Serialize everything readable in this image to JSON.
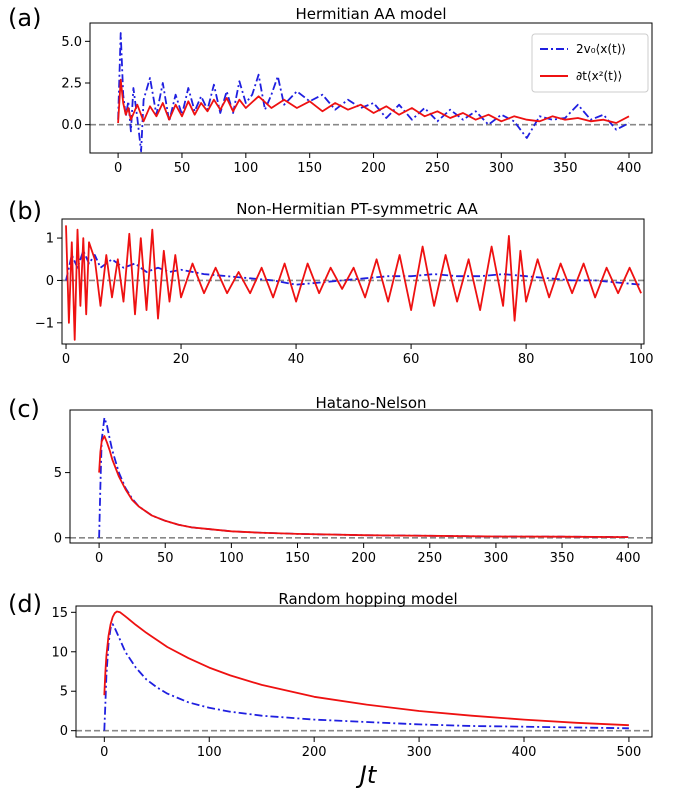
{
  "xlabel": "Jt",
  "legend": {
    "blue_label": "2v₀⟨x(t)⟩",
    "red_label": "∂t⟨x²(t)⟩"
  },
  "colors": {
    "blue": "#1f1fe0",
    "red": "#ee1111",
    "zero_line": "#888888"
  },
  "chart_data": [
    {
      "type": "line",
      "letter": "(a)",
      "title": "Hermitian AA model",
      "xlim": [
        -22,
        418
      ],
      "ylim": [
        -1.7,
        6.1
      ],
      "xticks": [
        0,
        50,
        100,
        150,
        200,
        250,
        300,
        350,
        400
      ],
      "yticks": [
        0.0,
        2.5,
        5.0
      ],
      "ytick_labels": [
        "0.0",
        "2.5",
        "5.0"
      ],
      "legend_location": "upper-right",
      "hline": 0,
      "series": [
        {
          "key": "blue",
          "style": "dashdot",
          "x": [
            0,
            2,
            4,
            6,
            8,
            10,
            12,
            15,
            18,
            20,
            25,
            30,
            35,
            40,
            45,
            50,
            55,
            60,
            65,
            70,
            75,
            80,
            85,
            90,
            95,
            100,
            105,
            110,
            115,
            120,
            125,
            130,
            140,
            150,
            160,
            170,
            180,
            190,
            200,
            210,
            220,
            230,
            240,
            250,
            260,
            270,
            280,
            290,
            300,
            310,
            320,
            330,
            340,
            350,
            360,
            370,
            380,
            390,
            400
          ],
          "y": [
            0.3,
            5.5,
            1.8,
            0.5,
            1.4,
            -0.4,
            2.2,
            0.4,
            -1.6,
            1.5,
            2.8,
            0.6,
            2.5,
            0.2,
            1.8,
            0.6,
            2.2,
            0.8,
            1.7,
            0.9,
            2.4,
            0.7,
            2.0,
            0.7,
            2.6,
            1.3,
            1.8,
            3.0,
            0.9,
            1.8,
            2.9,
            1.2,
            2.0,
            1.4,
            1.8,
            0.9,
            1.5,
            1.0,
            1.3,
            0.4,
            1.2,
            0.3,
            1.0,
            0.2,
            0.9,
            0.3,
            0.8,
            0.0,
            0.6,
            0.2,
            -0.8,
            0.5,
            0.3,
            0.4,
            1.2,
            0.3,
            0.6,
            -0.3,
            0.1
          ]
        },
        {
          "key": "red",
          "style": "solid",
          "x": [
            0,
            2,
            4,
            6,
            8,
            10,
            15,
            20,
            25,
            30,
            35,
            40,
            45,
            50,
            55,
            60,
            65,
            70,
            75,
            80,
            85,
            90,
            95,
            100,
            110,
            120,
            130,
            140,
            150,
            160,
            170,
            180,
            190,
            200,
            210,
            220,
            230,
            240,
            250,
            260,
            270,
            280,
            290,
            300,
            310,
            320,
            330,
            340,
            350,
            360,
            370,
            380,
            390,
            400
          ],
          "y": [
            0.1,
            2.7,
            1.3,
            0.6,
            1.0,
            0.3,
            1.2,
            0.2,
            1.1,
            0.5,
            1.3,
            0.3,
            1.2,
            0.5,
            1.4,
            0.6,
            1.3,
            0.8,
            1.5,
            0.9,
            1.6,
            0.8,
            1.5,
            1.0,
            1.7,
            1.0,
            1.5,
            1.0,
            1.4,
            0.8,
            1.3,
            0.9,
            1.2,
            0.7,
            1.1,
            0.6,
            1.0,
            0.5,
            0.8,
            0.4,
            0.7,
            0.3,
            0.6,
            0.2,
            0.5,
            0.3,
            0.2,
            0.5,
            0.3,
            0.4,
            0.2,
            0.3,
            0.1,
            0.5
          ]
        }
      ]
    },
    {
      "type": "line",
      "letter": "(b)",
      "title": "Non-Hermitian PT-symmetric AA",
      "xlim": [
        -0.7,
        100.5
      ],
      "ylim": [
        -1.5,
        1.45
      ],
      "xticks": [
        0,
        20,
        40,
        60,
        80,
        100
      ],
      "yticks": [
        -1,
        0,
        1
      ],
      "ytick_labels": [
        "−1",
        "0",
        "1"
      ],
      "hline": 0,
      "series": [
        {
          "key": "blue",
          "style": "dashdot",
          "x": [
            0,
            1,
            2,
            3,
            4,
            5,
            6,
            8,
            10,
            12,
            14,
            16,
            18,
            20,
            24,
            28,
            32,
            36,
            40,
            44,
            48,
            52,
            56,
            60,
            64,
            68,
            72,
            76,
            80,
            84,
            88,
            92,
            96,
            100
          ],
          "y": [
            0.0,
            0.6,
            0.3,
            0.7,
            0.4,
            0.6,
            0.3,
            0.5,
            0.3,
            0.4,
            0.2,
            0.3,
            0.2,
            0.25,
            0.15,
            0.1,
            0.05,
            0.0,
            -0.1,
            -0.05,
            0.0,
            0.05,
            0.1,
            0.1,
            0.15,
            0.1,
            0.1,
            0.15,
            0.1,
            0.05,
            0.0,
            0.0,
            -0.05,
            -0.1
          ]
        },
        {
          "key": "red",
          "style": "solid",
          "x": [
            0,
            0.5,
            1,
            1.5,
            2,
            2.5,
            3,
            3.5,
            4,
            5,
            6,
            7,
            8,
            9,
            10,
            11,
            12,
            13,
            14,
            15,
            16,
            17,
            18,
            19,
            20,
            22,
            24,
            26,
            28,
            30,
            32,
            34,
            36,
            38,
            40,
            42,
            44,
            46,
            48,
            50,
            52,
            54,
            56,
            58,
            60,
            62,
            64,
            66,
            68,
            70,
            72,
            74,
            76,
            77,
            78,
            79,
            80,
            82,
            84,
            86,
            88,
            90,
            92,
            94,
            96,
            98,
            100
          ],
          "y": [
            1.3,
            -1.0,
            0.9,
            -1.4,
            1.2,
            -0.6,
            1.0,
            -0.8,
            0.9,
            0.5,
            -0.6,
            0.6,
            -0.4,
            0.5,
            -0.5,
            1.1,
            -0.8,
            1.0,
            -0.7,
            1.2,
            -0.9,
            0.7,
            -0.5,
            0.6,
            -0.4,
            0.4,
            -0.3,
            0.3,
            -0.3,
            0.2,
            -0.3,
            0.3,
            -0.4,
            0.4,
            -0.5,
            0.4,
            -0.3,
            0.3,
            -0.2,
            0.3,
            -0.4,
            0.5,
            -0.5,
            0.6,
            -0.7,
            0.8,
            -0.6,
            0.6,
            -0.5,
            0.5,
            -0.7,
            0.8,
            -0.6,
            1.05,
            -0.95,
            0.7,
            -0.5,
            0.5,
            -0.4,
            0.4,
            -0.3,
            0.4,
            -0.4,
            0.3,
            -0.3,
            0.3,
            -0.3
          ]
        }
      ]
    },
    {
      "type": "line",
      "letter": "(c)",
      "title": "Hatano-Nelson",
      "xlim": [
        -22,
        418
      ],
      "ylim": [
        -0.4,
        9.8
      ],
      "xticks": [
        0,
        50,
        100,
        150,
        200,
        250,
        300,
        350,
        400
      ],
      "yticks": [
        0,
        5
      ],
      "ytick_labels": [
        "0",
        "5"
      ],
      "hline": 0,
      "series": [
        {
          "key": "blue",
          "style": "dashdot",
          "x": [
            0,
            1,
            2,
            4,
            6,
            8,
            10,
            15,
            20,
            25,
            30,
            40,
            50,
            60,
            70,
            80,
            100,
            120,
            150,
            200,
            250,
            300,
            350,
            400
          ],
          "y": [
            0.0,
            4.0,
            7.5,
            9.2,
            8.6,
            7.6,
            6.7,
            5.0,
            3.8,
            3.0,
            2.4,
            1.7,
            1.3,
            1.0,
            0.8,
            0.7,
            0.5,
            0.4,
            0.3,
            0.2,
            0.15,
            0.1,
            0.08,
            0.05
          ]
        },
        {
          "key": "red",
          "style": "solid",
          "x": [
            0,
            1,
            2,
            4,
            6,
            8,
            10,
            15,
            20,
            25,
            30,
            40,
            50,
            60,
            70,
            80,
            100,
            120,
            150,
            200,
            250,
            300,
            350,
            400
          ],
          "y": [
            5.0,
            6.6,
            7.4,
            7.8,
            7.3,
            6.7,
            6.0,
            4.7,
            3.7,
            2.9,
            2.4,
            1.7,
            1.3,
            1.0,
            0.8,
            0.7,
            0.5,
            0.4,
            0.3,
            0.2,
            0.15,
            0.1,
            0.08,
            0.05
          ]
        }
      ]
    },
    {
      "type": "line",
      "letter": "(d)",
      "title": "Random hopping model",
      "xlim": [
        -27,
        522
      ],
      "ylim": [
        -0.8,
        15.8
      ],
      "xticks": [
        0,
        100,
        200,
        300,
        400,
        500
      ],
      "yticks": [
        0,
        5,
        10,
        15
      ],
      "ytick_labels": [
        "0",
        "5",
        "10",
        "15"
      ],
      "hline": 0,
      "series": [
        {
          "key": "blue",
          "style": "dashdot",
          "x": [
            0,
            1,
            2,
            4,
            6,
            8,
            10,
            15,
            20,
            30,
            40,
            50,
            60,
            80,
            100,
            120,
            150,
            200,
            250,
            300,
            350,
            400,
            450,
            500
          ],
          "y": [
            0.0,
            3.5,
            7.0,
            11.0,
            13.0,
            13.5,
            13.0,
            11.5,
            10.0,
            8.0,
            6.5,
            5.5,
            4.7,
            3.6,
            2.9,
            2.4,
            1.9,
            1.4,
            1.1,
            0.8,
            0.6,
            0.5,
            0.4,
            0.3
          ]
        },
        {
          "key": "red",
          "style": "solid",
          "x": [
            0,
            1,
            2,
            4,
            6,
            8,
            10,
            12,
            15,
            20,
            30,
            40,
            50,
            60,
            80,
            100,
            120,
            150,
            200,
            250,
            300,
            350,
            400,
            450,
            500
          ],
          "y": [
            4.5,
            7.5,
            9.5,
            12.0,
            13.5,
            14.4,
            14.9,
            15.1,
            15.0,
            14.5,
            13.4,
            12.4,
            11.5,
            10.6,
            9.2,
            8.0,
            7.0,
            5.8,
            4.3,
            3.3,
            2.5,
            1.9,
            1.4,
            1.0,
            0.7
          ]
        }
      ]
    }
  ]
}
